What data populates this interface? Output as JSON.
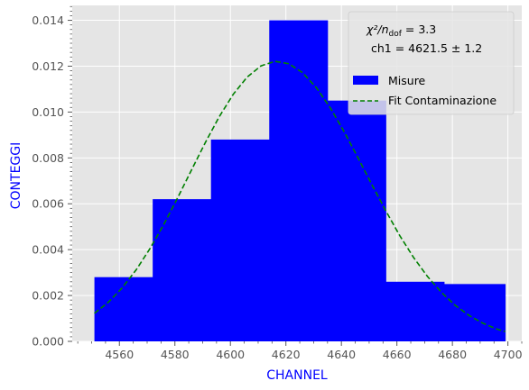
{
  "chart_data": {
    "type": "bar",
    "xlabel": "CHANNEL",
    "ylabel": "CONTEGGI",
    "xlim": [
      4543,
      4705
    ],
    "ylim": [
      0,
      0.01465
    ],
    "x_ticks": [
      4560,
      4580,
      4600,
      4620,
      4640,
      4660,
      4680,
      4700
    ],
    "y_ticks": [
      0.0,
      0.002,
      0.004,
      0.006,
      0.008,
      0.01,
      0.012,
      0.014
    ],
    "x_tick_labels": [
      "4560",
      "4580",
      "4600",
      "4620",
      "4640",
      "4660",
      "4680",
      "4700"
    ],
    "y_tick_labels": [
      "0.000",
      "0.002",
      "0.004",
      "0.006",
      "0.008",
      "0.010",
      "0.012",
      "0.014"
    ],
    "grid": true,
    "legend_position": "top-right",
    "histogram": {
      "name": "Misure",
      "color": "#0000ff",
      "bin_edges": [
        4551,
        4572,
        4593,
        4614,
        4635,
        4656,
        4677,
        4699
      ],
      "values": [
        0.0028,
        0.0062,
        0.0088,
        0.014,
        0.0105,
        0.0026,
        0.0025
      ]
    },
    "fit": {
      "name": "Fit Contaminazione",
      "color": "#008000",
      "style": "dashed",
      "x": [
        4551,
        4556,
        4561,
        4566,
        4571,
        4576,
        4581,
        4586,
        4591,
        4596,
        4601,
        4606,
        4611,
        4616,
        4621,
        4626,
        4631,
        4636,
        4641,
        4646,
        4651,
        4656,
        4661,
        4666,
        4671,
        4676,
        4681,
        4686,
        4691,
        4696,
        4699
      ],
      "y": [
        0.00122,
        0.00171,
        0.00233,
        0.00311,
        0.00404,
        0.0051,
        0.00626,
        0.00748,
        0.00868,
        0.0098,
        0.01077,
        0.01152,
        0.01201,
        0.01221,
        0.01211,
        0.01172,
        0.01106,
        0.01018,
        0.00914,
        0.008,
        0.00683,
        0.00569,
        0.00462,
        0.00366,
        0.00283,
        0.00214,
        0.00157,
        0.00113,
        0.00079,
        0.00054,
        0.00043
      ]
    },
    "annotations": {
      "chi": "χ²/n",
      "chi_sub": "dof",
      "chi_value": " = 3.3",
      "param": "ch1 = 4621.5 ± 1.2"
    }
  },
  "colors": {
    "plot_background": "#e5e5e5",
    "grid": "#ffffff",
    "axis_text": "#555555",
    "axis_title": "#0000ff"
  }
}
